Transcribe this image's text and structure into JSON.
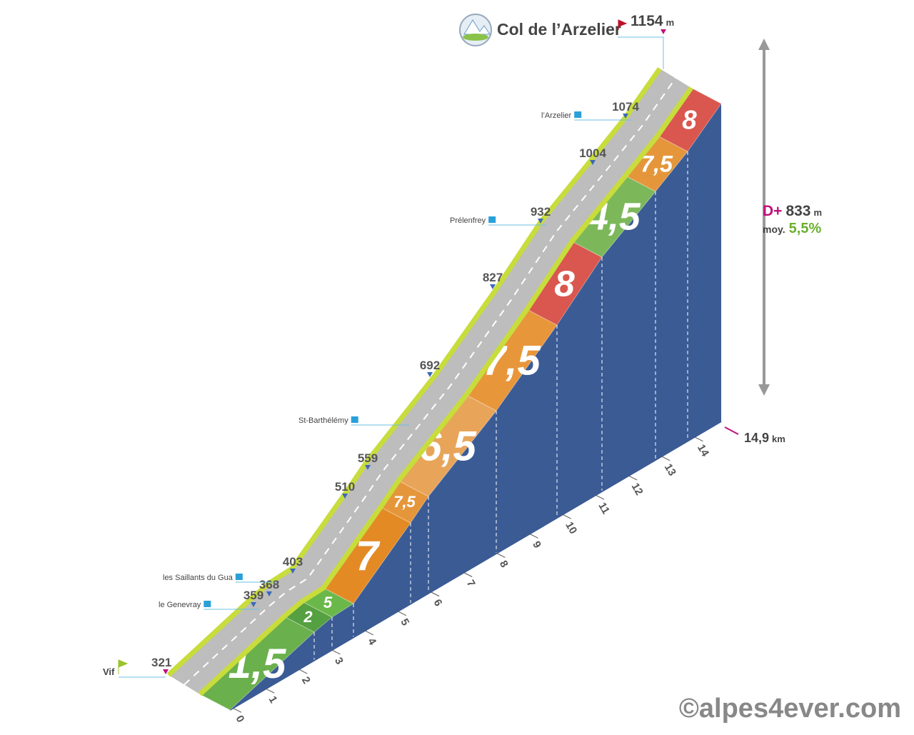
{
  "title": "Col de l’Arzelier",
  "summit": {
    "altitude": 1154,
    "unit": "m"
  },
  "start": {
    "name": "Vif",
    "altitude": 321
  },
  "waypoints": [
    {
      "name": "le Genevray",
      "altitude": 359
    },
    {
      "name": "les Saillants du Gua",
      "altitude": 368
    },
    {
      "altitude": 403
    },
    {
      "altitude": 510
    },
    {
      "altitude": 559
    },
    {
      "name": "St-Barthélémy"
    },
    {
      "altitude": 692
    },
    {
      "altitude": 827
    },
    {
      "name": "Prélenfrey",
      "altitude": 932
    },
    {
      "altitude": 1004
    },
    {
      "name": "l’Arzelier",
      "altitude": 1074
    }
  ],
  "gradients": [
    "1,5",
    "2",
    "5",
    "7",
    "7,5",
    "6,5",
    "7,5",
    "8",
    "4,5",
    "7,5",
    "8"
  ],
  "km_markers": [
    0,
    1,
    2,
    3,
    4,
    5,
    6,
    7,
    8,
    9,
    10,
    11,
    12,
    13,
    14
  ],
  "distance": {
    "value": "14,9",
    "unit": "km"
  },
  "elevation_gain": {
    "label": "D+",
    "value": 833,
    "unit": "m"
  },
  "average": {
    "label": "moy.",
    "value": "5,5%"
  },
  "copyright": "©alpes4ever.com"
}
